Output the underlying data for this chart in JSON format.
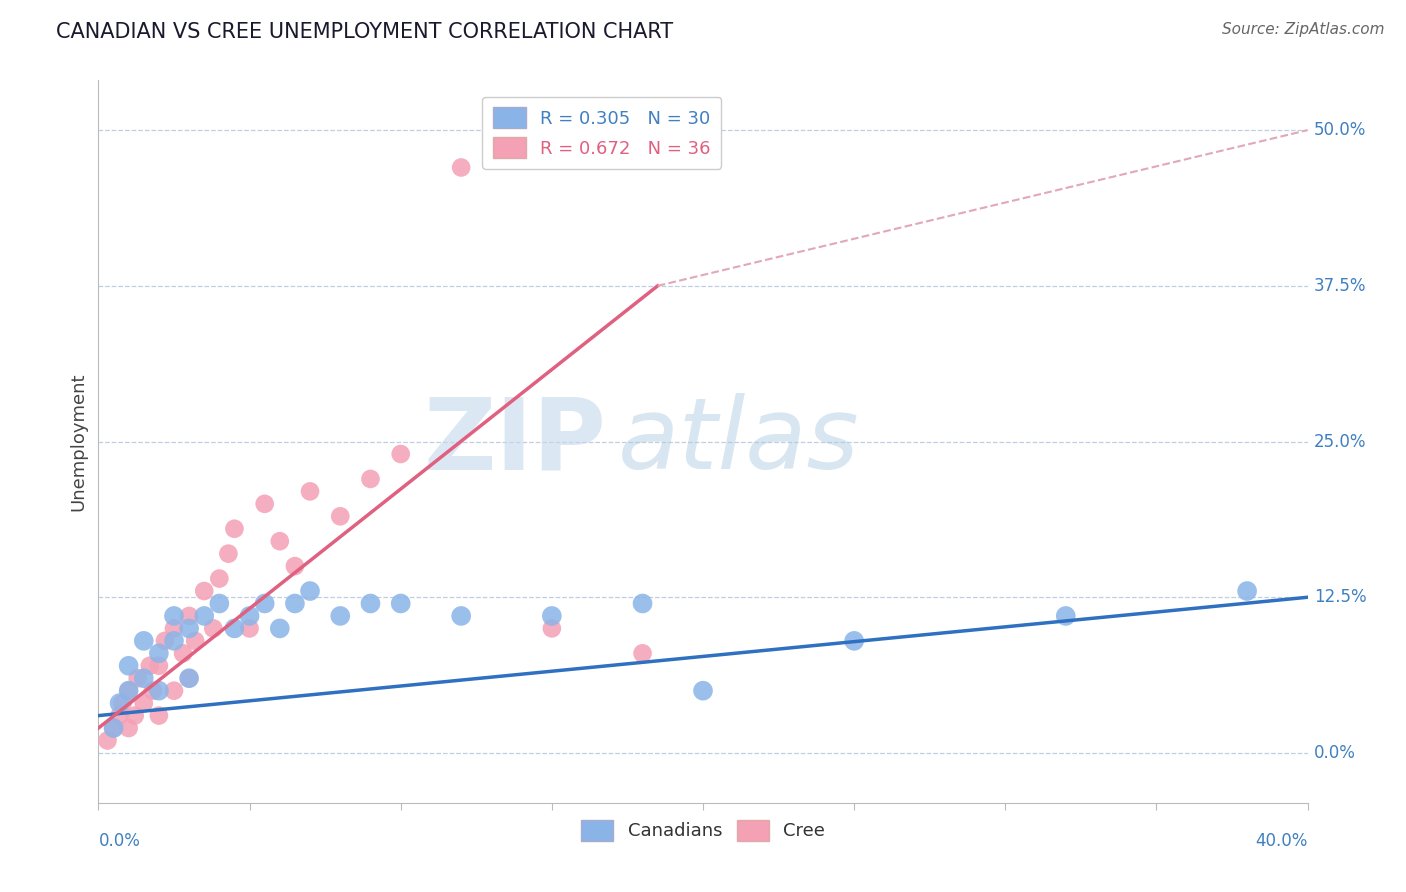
{
  "title": "CANADIAN VS CREE UNEMPLOYMENT CORRELATION CHART",
  "source": "Source: ZipAtlas.com",
  "ylabel": "Unemployment",
  "ytick_labels": [
    "0.0%",
    "12.5%",
    "25.0%",
    "37.5%",
    "50.0%"
  ],
  "ytick_values": [
    0.0,
    0.125,
    0.25,
    0.375,
    0.5
  ],
  "xlim": [
    0.0,
    0.4
  ],
  "ylim": [
    -0.04,
    0.54
  ],
  "legend_entries": [
    {
      "label": "R = 0.305   N = 30",
      "color": "#8ab4e8"
    },
    {
      "label": "R = 0.672   N = 36",
      "color": "#f4a0b5"
    }
  ],
  "watermark_zip": "ZIP",
  "watermark_atlas": "atlas",
  "canadians_color": "#8ab4e8",
  "cree_color": "#f4a0b5",
  "canadians_line_color": "#3070c0",
  "cree_line_color": "#e06080",
  "trend_ext_color": "#e0a8b8",
  "canadians_x": [
    0.005,
    0.007,
    0.01,
    0.01,
    0.015,
    0.015,
    0.02,
    0.02,
    0.025,
    0.025,
    0.03,
    0.03,
    0.035,
    0.04,
    0.045,
    0.05,
    0.055,
    0.06,
    0.065,
    0.07,
    0.08,
    0.09,
    0.1,
    0.12,
    0.15,
    0.18,
    0.2,
    0.25,
    0.32,
    0.38
  ],
  "canadians_y": [
    0.02,
    0.04,
    0.05,
    0.07,
    0.06,
    0.09,
    0.05,
    0.08,
    0.09,
    0.11,
    0.06,
    0.1,
    0.11,
    0.12,
    0.1,
    0.11,
    0.12,
    0.1,
    0.12,
    0.13,
    0.11,
    0.12,
    0.12,
    0.11,
    0.11,
    0.12,
    0.05,
    0.09,
    0.11,
    0.13
  ],
  "cree_x": [
    0.003,
    0.005,
    0.007,
    0.008,
    0.01,
    0.01,
    0.012,
    0.013,
    0.015,
    0.017,
    0.018,
    0.02,
    0.02,
    0.022,
    0.025,
    0.025,
    0.028,
    0.03,
    0.03,
    0.032,
    0.035,
    0.038,
    0.04,
    0.043,
    0.045,
    0.05,
    0.055,
    0.06,
    0.065,
    0.07,
    0.08,
    0.09,
    0.1,
    0.12,
    0.15,
    0.18
  ],
  "cree_y": [
    0.01,
    0.02,
    0.03,
    0.04,
    0.02,
    0.05,
    0.03,
    0.06,
    0.04,
    0.07,
    0.05,
    0.03,
    0.07,
    0.09,
    0.05,
    0.1,
    0.08,
    0.06,
    0.11,
    0.09,
    0.13,
    0.1,
    0.14,
    0.16,
    0.18,
    0.1,
    0.2,
    0.17,
    0.15,
    0.21,
    0.19,
    0.22,
    0.24,
    0.47,
    0.1,
    0.08
  ],
  "cree_outlier_x": [
    0.12
  ],
  "cree_outlier_y": [
    0.47
  ],
  "canadians_trendline": [
    0.03,
    0.125
  ],
  "cree_trendline_solid": [
    0.03,
    0.375
  ],
  "cree_trendline_end": [
    0.5
  ],
  "background_color": "#ffffff",
  "grid_color": "#c0cfe0",
  "title_color": "#1a1a2e",
  "source_color": "#666666",
  "axis_label_color": "#4080c0",
  "ylabel_color": "#444444"
}
